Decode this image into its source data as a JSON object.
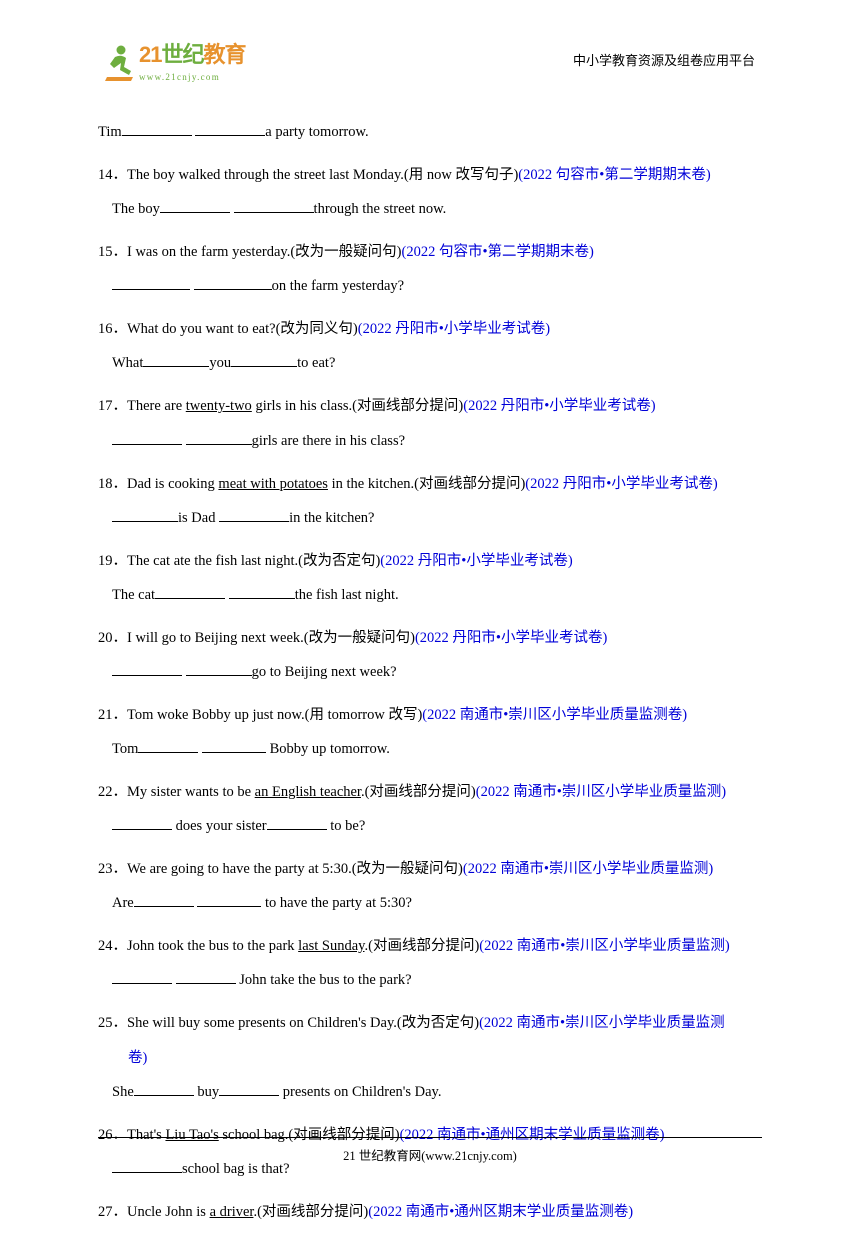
{
  "header": {
    "logo_main_zh": "世纪",
    "logo_num": "21",
    "logo_suffix_zh": "教育",
    "logo_url": "www.21cnjy.com",
    "right_text": "中小学教育资源及组卷应用平台"
  },
  "footer": {
    "text": "21 世纪教育网(www.21cnjy.com)"
  },
  "colors": {
    "link": "#0000d8",
    "logo_green": "#6eae3f",
    "logo_orange": "#e7922e",
    "text": "#000000",
    "bg": "#ffffff"
  },
  "questions": [
    {
      "n": "",
      "line1_parts": [
        "   Tim",
        "__70",
        "  ",
        "__70",
        "a party tomorrow."
      ],
      "line2_parts": [],
      "source": ""
    },
    {
      "n": "14．",
      "line1_parts": [
        "The boy walked through the street last Monday.(用 now 改写句子)"
      ],
      "source": "(2022 句容市•第二学期期末卷)",
      "line2_parts": [
        "   The boy",
        "__70",
        "  ",
        "__80",
        "through the street now."
      ]
    },
    {
      "n": "15．",
      "line1_parts": [
        "I was on the farm yesterday.(改为一般疑问句)"
      ],
      "source": "(2022 句容市•第二学期期末卷)",
      "line2_parts": [
        "   ",
        "__78",
        "  ",
        "__78",
        "on the farm yesterday?"
      ]
    },
    {
      "n": "16．",
      "line1_parts": [
        "What do you want to eat?(改为同义句)"
      ],
      "source": "(2022 丹阳市•小学毕业考试卷)",
      "line2_parts": [
        "   What",
        "__66",
        "you",
        "__66",
        "to eat?"
      ]
    },
    {
      "n": "17．",
      "line1_parts": [
        "There are ",
        {
          "u": "twenty-two"
        },
        " girls in his class.(对画线部分提问)"
      ],
      "source": "(2022 丹阳市•小学毕业考试卷)",
      "line2_parts": [
        "   ",
        "__70",
        "  ",
        "__66",
        "girls are there in his class?"
      ]
    },
    {
      "n": "18．",
      "line1_parts": [
        "Dad is cooking ",
        {
          "u": "meat with potatoes"
        },
        " in the kitchen.(对画线部分提问)"
      ],
      "source": "(2022 丹阳市•小学毕业考试卷)",
      "line2_parts": [
        "   ",
        "__66",
        "is Dad  ",
        "__70",
        "in the kitchen?"
      ]
    },
    {
      "n": "19．",
      "line1_parts": [
        "The cat ate the fish last night.(改为否定句)"
      ],
      "source": "(2022 丹阳市•小学毕业考试卷)",
      "line2_parts": [
        "   The cat",
        "__70",
        "  ",
        "__66",
        "the fish last night."
      ]
    },
    {
      "n": "20．",
      "line1_parts": [
        "I will go to Beijing next week.(改为一般疑问句)"
      ],
      "source": "(2022 丹阳市•小学毕业考试卷)",
      "line2_parts": [
        "   ",
        "__70",
        "  ",
        "__66",
        "go to Beijing next week?"
      ]
    },
    {
      "n": "21．",
      "line1_parts": [
        "Tom woke Bobby up just now.(用 tomorrow 改写)"
      ],
      "source": "(2022 南通市•崇川区小学毕业质量监测卷)",
      "line2_parts": [
        "   Tom",
        "__60",
        "  ",
        "__64",
        "  Bobby up tomorrow."
      ]
    },
    {
      "n": "22．",
      "line1_parts": [
        "My sister wants to be ",
        {
          "u": "an English teacher"
        },
        ".(对画线部分提问)"
      ],
      "source": "(2022 南通市•崇川区小学毕业质量监测)",
      "line2_parts": [
        "   ",
        "__60",
        "  does your sister",
        "__60",
        "  to be?"
      ]
    },
    {
      "n": "23．",
      "line1_parts": [
        "We are going to have the party at 5:30.(改为一般疑问句)"
      ],
      "source": "(2022 南通市•崇川区小学毕业质量监测)",
      "line2_parts": [
        "   Are",
        "__60",
        "  ",
        "__64",
        "  to have the party at 5:30?"
      ]
    },
    {
      "n": "24．",
      "line1_parts": [
        "John took the bus to the park ",
        {
          "u": "last Sunday"
        },
        ".(对画线部分提问)"
      ],
      "source": "(2022 南通市•崇川区小学毕业质量监测)",
      "line2_parts": [
        "   ",
        "__60",
        "  ",
        "__60",
        "  John take the bus to the park?"
      ]
    },
    {
      "n": "25．",
      "line1_parts": [
        "She will buy some presents on Children's Day.(改为否定句)"
      ],
      "source": "(2022 南通市•崇川区小学毕业质量监测",
      "source_wrap": "卷)",
      "line2_parts": [
        "   She",
        "__60",
        "  buy",
        "__60",
        "  presents on Children's Day."
      ]
    },
    {
      "n": "26．",
      "line1_parts": [
        "That's ",
        {
          "u": "Liu Tao's"
        },
        " school bag.(对画线部分提问)"
      ],
      "source": "(2022 南通市•通州区期末学业质量监测卷)",
      "line2_parts": [
        "   ",
        "__70",
        "school bag is that?"
      ]
    },
    {
      "n": "27．",
      "line1_parts": [
        "Uncle John is ",
        {
          "u": "a driver"
        },
        ".(对画线部分提问)"
      ],
      "source": "(2022 南通市•通州区期末学业质量监测卷)",
      "line2_parts": []
    }
  ]
}
